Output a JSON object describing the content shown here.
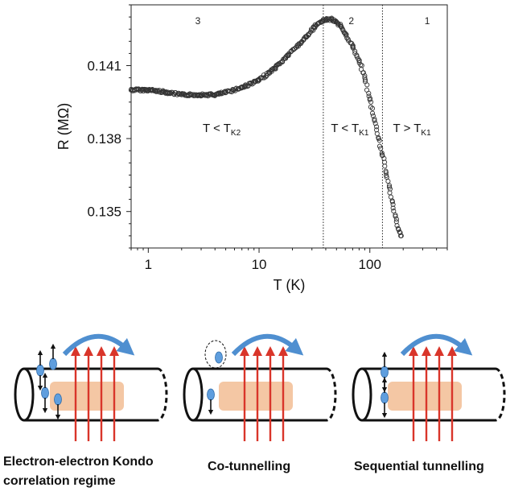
{
  "chart_data": {
    "type": "scatter",
    "title": "",
    "xlabel": "T (K)",
    "ylabel": "R (MΩ)",
    "x_scale": "log",
    "xlim": [
      0.7,
      500
    ],
    "ylim": [
      0.1335,
      0.1435
    ],
    "xticks": [
      1,
      10,
      100
    ],
    "xtick_labels": [
      "1",
      "10",
      "100"
    ],
    "yticks": [
      0.135,
      0.138,
      0.141
    ],
    "ytick_labels": [
      "0.135",
      "0.138",
      "0.141"
    ],
    "grid": false,
    "legend": "none",
    "marker": "open circle",
    "series": [
      {
        "x": [
          0.7,
          1.0,
          1.5,
          2,
          3,
          4,
          5,
          7,
          10,
          14,
          18,
          22,
          27,
          32,
          36,
          40,
          45,
          50,
          55,
          60,
          70,
          80,
          90,
          100,
          110,
          120,
          130,
          140,
          150,
          160,
          170,
          180,
          190
        ],
        "values": [
          0.14,
          0.14,
          0.1399,
          0.1398,
          0.1398,
          0.1398,
          0.1399,
          0.1401,
          0.1404,
          0.1409,
          0.1414,
          0.1418,
          0.1422,
          0.1426,
          0.1428,
          0.1429,
          0.1429,
          0.1428,
          0.1426,
          0.1423,
          0.1418,
          0.1412,
          0.1405,
          0.1396,
          0.1388,
          0.138,
          0.1373,
          0.1366,
          0.136,
          0.1354,
          0.1348,
          0.1343,
          0.134
        ]
      }
    ],
    "boundaries_T": [
      38,
      130
    ],
    "region_numbers": [
      "3",
      "2",
      "1"
    ],
    "regimes": [
      {
        "text": "T < T",
        "sub": "K2"
      },
      {
        "text": "T < T",
        "sub": "K1"
      },
      {
        "text": "T > T",
        "sub": "K1"
      }
    ]
  },
  "captions": [
    {
      "line1": "Electron-electron Kondo",
      "line2": "correlation regime"
    },
    {
      "line1": "Co-tunnelling",
      "line2": ""
    },
    {
      "line1": "Sequential tunnelling",
      "line2": ""
    }
  ],
  "colors": {
    "field_arrow": "#d9352a",
    "hop_arrow": "#4f8fd0",
    "electron": "#5f9ede",
    "dot_region": "#f4c7a4",
    "ink": "#111111"
  }
}
